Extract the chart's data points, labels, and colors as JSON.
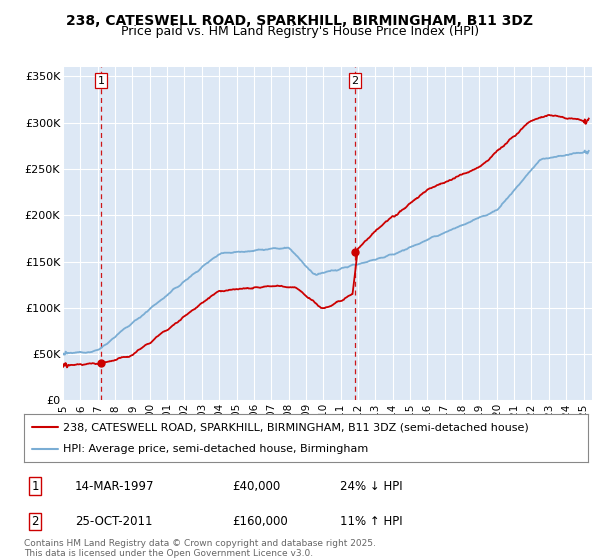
{
  "title_line1": "238, CATESWELL ROAD, SPARKHILL, BIRMINGHAM, B11 3DZ",
  "title_line2": "Price paid vs. HM Land Registry's House Price Index (HPI)",
  "ytick_labels": [
    "£0",
    "£50K",
    "£100K",
    "£150K",
    "£200K",
    "£250K",
    "£300K",
    "£350K"
  ],
  "ytick_values": [
    0,
    50000,
    100000,
    150000,
    200000,
    250000,
    300000,
    350000
  ],
  "ylim": [
    0,
    360000
  ],
  "xlim_start": 1995.0,
  "xlim_end": 2025.5,
  "plot_bg_color": "#dde8f5",
  "grid_color": "#ffffff",
  "red_line_color": "#cc0000",
  "blue_line_color": "#7aadd4",
  "sale1_year": 1997.2,
  "sale1_price": 40000,
  "sale1_label": "1",
  "sale2_year": 2011.83,
  "sale2_price": 160000,
  "sale2_label": "2",
  "legend_line1": "238, CATESWELL ROAD, SPARKHILL, BIRMINGHAM, B11 3DZ (semi-detached house)",
  "legend_line2": "HPI: Average price, semi-detached house, Birmingham",
  "annotation1_date": "14-MAR-1997",
  "annotation1_price": "£40,000",
  "annotation1_hpi": "24% ↓ HPI",
  "annotation2_date": "25-OCT-2011",
  "annotation2_price": "£160,000",
  "annotation2_hpi": "11% ↑ HPI",
  "footer": "Contains HM Land Registry data © Crown copyright and database right 2025.\nThis data is licensed under the Open Government Licence v3.0.",
  "title_fontsize": 10,
  "subtitle_fontsize": 9,
  "tick_fontsize": 8,
  "legend_fontsize": 8,
  "annotation_fontsize": 8.5,
  "footer_fontsize": 6.5
}
